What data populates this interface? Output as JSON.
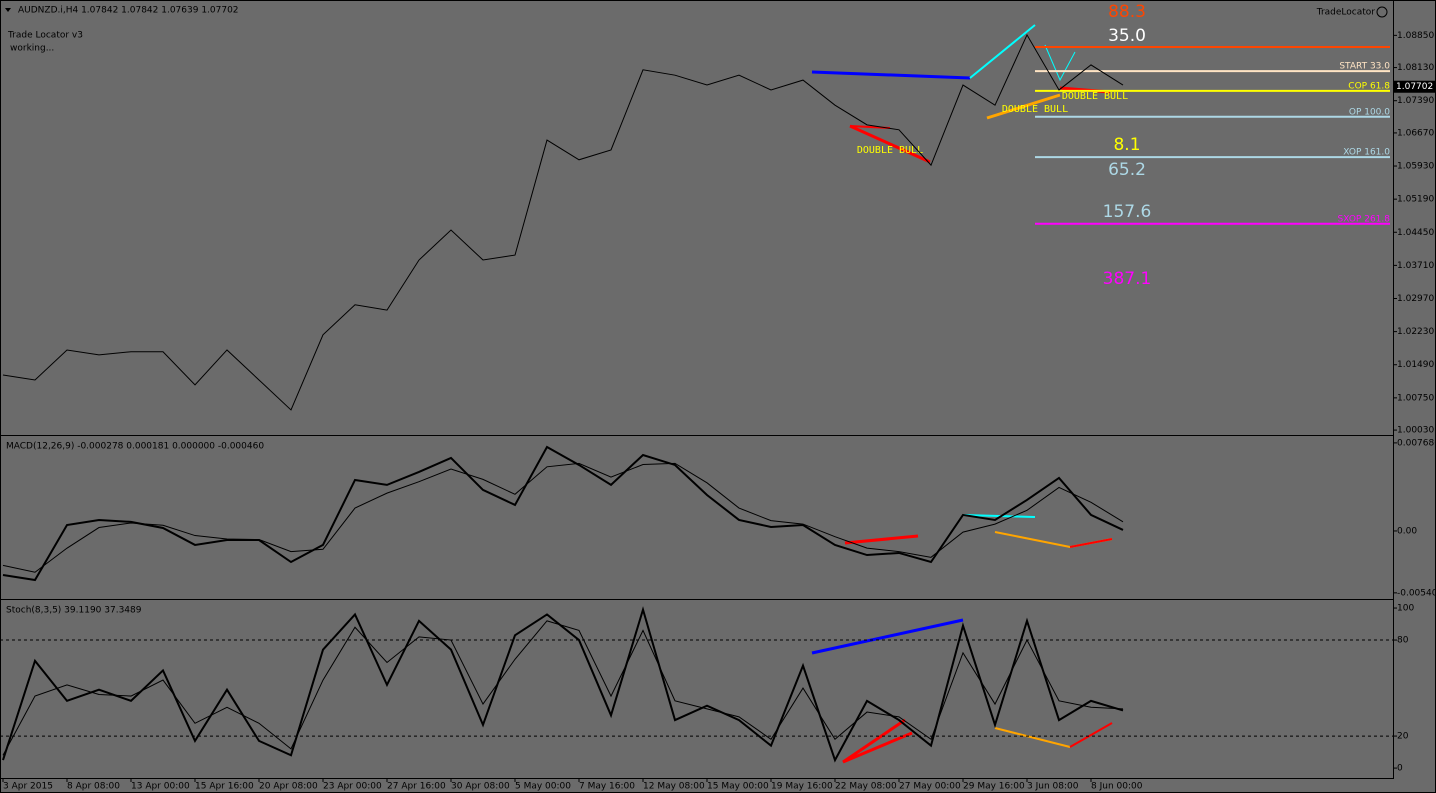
{
  "window": {
    "symbol_info": "AUDNZD.i,H4  1.07842 1.07842 1.07639 1.07702",
    "indicator_name": "Trade Locator v3",
    "status": "working...",
    "brand": "TradeLocator"
  },
  "chart_data": [
    {
      "type": "line",
      "title": "",
      "ylim": [
        0.9992,
        1.0964
      ],
      "yticks": [
        {
          "value": 1.0885,
          "label": "1.08850"
        },
        {
          "value": 1.0813,
          "label": "1.08130"
        },
        {
          "value": 1.0739,
          "label": "1.07390"
        },
        {
          "value": 1.0667,
          "label": "1.06670"
        },
        {
          "value": 1.0593,
          "label": "1.05930"
        },
        {
          "value": 1.0519,
          "label": "1.05190"
        },
        {
          "value": 1.0445,
          "label": "1.04450"
        },
        {
          "value": 1.0371,
          "label": "1.03710"
        },
        {
          "value": 1.0297,
          "label": "1.02970"
        },
        {
          "value": 1.0223,
          "label": "1.02230"
        },
        {
          "value": 1.0149,
          "label": "1.01490"
        },
        {
          "value": 1.0075,
          "label": "1.00750"
        },
        {
          "value": 1.0003,
          "label": "1.00030"
        }
      ],
      "series": [
        {
          "name": "AUDNZD.i",
          "color": "#000000",
          "values": [
            1.0126,
            1.0115,
            1.0182,
            1.0171,
            1.0178,
            1.0178,
            1.0104,
            1.0182,
            1.0115,
            1.0048,
            1.0216,
            1.0283,
            1.0271,
            1.0383,
            1.045,
            1.0383,
            1.0394,
            1.0651,
            1.0607,
            1.0629,
            1.0808,
            1.0796,
            1.0774,
            1.0796,
            1.0763,
            1.0785,
            1.0729,
            1.0685,
            1.0674,
            1.0595,
            1.0774,
            1.0729,
            1.0886,
            1.0763,
            1.0819,
            1.0774
          ]
        }
      ],
      "current_price": {
        "value": 1.07702,
        "label": "1.07702"
      },
      "levels": [
        {
          "value": 1.0859,
          "color": "#ff4500"
        },
        {
          "value": 1.0805,
          "color": "#ffe4c4",
          "label": "START 33.0"
        },
        {
          "value": 1.0761,
          "color": "#ffff00",
          "label": "COP 61.8"
        },
        {
          "value": 1.0703,
          "color": "#add8e6",
          "label": "OP 100.0"
        },
        {
          "value": 1.0613,
          "color": "#add8e6",
          "label": "XOP 161.0"
        },
        {
          "value": 1.0464,
          "color": "#ff00ff",
          "label": "SXOP 261.8"
        }
      ],
      "annotations": [
        {
          "text": "88.3",
          "color": "#ff4500"
        },
        {
          "text": "35.0",
          "color": "#ffffff"
        },
        {
          "text": "8.1",
          "color": "#ffff00"
        },
        {
          "text": "65.2",
          "color": "#add8e6"
        },
        {
          "text": "157.6",
          "color": "#add8e6"
        },
        {
          "text": "387.1",
          "color": "#ff00ff"
        }
      ],
      "patterns": [
        "DOUBLE BULL",
        "DOUBLE BULL",
        "DOUBLE BULL"
      ]
    },
    {
      "type": "line",
      "title": "MACD(12,26,9) -0.000278 0.000181 0.000000 -0.000460",
      "ylim": [
        -0.00585,
        0.0082
      ],
      "yticks": [
        0.007686,
        {
          "value": 0,
          "label": "0.00"
        },
        -0.005401
      ],
      "series": [
        {
          "name": "MACD",
          "color": "#000000",
          "values": [
            -0.00384,
            -0.00428,
            0.00052,
            0.00096,
            0.00079,
            0.00026,
            -0.00122,
            -0.00079,
            -0.00079,
            -0.00271,
            -0.00122,
            0.00445,
            0.00402,
            0.00515,
            0.00637,
            0.00358,
            0.00227,
            0.00733,
            0.00576,
            0.00402,
            0.00663,
            0.00576,
            0.00314,
            0.00096,
            0.00035,
            0.00052,
            -0.00122,
            -0.0021,
            -0.00192,
            -0.00271,
            0.0014,
            0.00096,
            0.00271,
            0.00463,
            0.0014,
            9e-05
          ]
        },
        {
          "name": "Signal",
          "color": "#000000",
          "values": [
            -0.003,
            -0.0036,
            -0.0015,
            0.0003,
            0.0007,
            0.0005,
            -0.0004,
            -0.0007,
            -0.00075,
            -0.0018,
            -0.0016,
            0.002,
            0.0033,
            0.0043,
            0.0054,
            0.0045,
            0.0032,
            0.0056,
            0.0059,
            0.0047,
            0.0058,
            0.0059,
            0.0042,
            0.002,
            0.0009,
            0.0006,
            -0.0005,
            -0.0015,
            -0.0018,
            -0.0023,
            -0.0001,
            0.0006,
            0.0018,
            0.0038,
            0.0025,
            0.0008
          ]
        }
      ]
    },
    {
      "type": "line",
      "title": "Stoch(8,3,5) 39.1190 37.3489",
      "ylim": [
        -6.2,
        104.4
      ],
      "yticks": [
        100,
        80,
        20,
        0
      ],
      "dashed_levels": [
        80,
        20
      ],
      "categories": [
        "3 Apr 2015",
        null,
        "8 Apr 08:00",
        null,
        "13 Apr 00:00",
        null,
        "15 Apr 16:00",
        null,
        "20 Apr 08:00",
        null,
        "23 Apr 00:00",
        null,
        "27 Apr 16:00",
        null,
        "30 Apr 08:00",
        null,
        "5 May 00:00",
        null,
        "7 May 16:00",
        null,
        "12 May 08:00",
        null,
        "15 May 00:00",
        null,
        "19 May 16:00",
        null,
        "22 May 08:00",
        null,
        "27 May 00:00",
        null,
        "29 May 16:00",
        null,
        "3 Jun 08:00",
        null,
        "8 Jun 00:00",
        null
      ],
      "series": [
        {
          "name": "Main",
          "color": "#000000",
          "values": [
            5,
            67,
            42,
            49,
            42,
            61,
            17,
            49,
            17,
            8,
            74,
            96,
            52,
            92,
            74,
            27,
            83,
            96,
            80,
            33,
            99,
            30,
            39,
            30,
            14,
            64,
            5,
            42,
            30,
            14,
            89,
            27,
            92,
            30,
            42,
            36
          ]
        },
        {
          "name": "Signal",
          "color": "#000000",
          "values": [
            8,
            45,
            52,
            46,
            45,
            55,
            28,
            38,
            28,
            12,
            55,
            88,
            66,
            82,
            80,
            40,
            68,
            92,
            86,
            45,
            86,
            42,
            37,
            32,
            18,
            50,
            18,
            35,
            32,
            18,
            72,
            40,
            80,
            42,
            38,
            37
          ]
        }
      ]
    }
  ]
}
